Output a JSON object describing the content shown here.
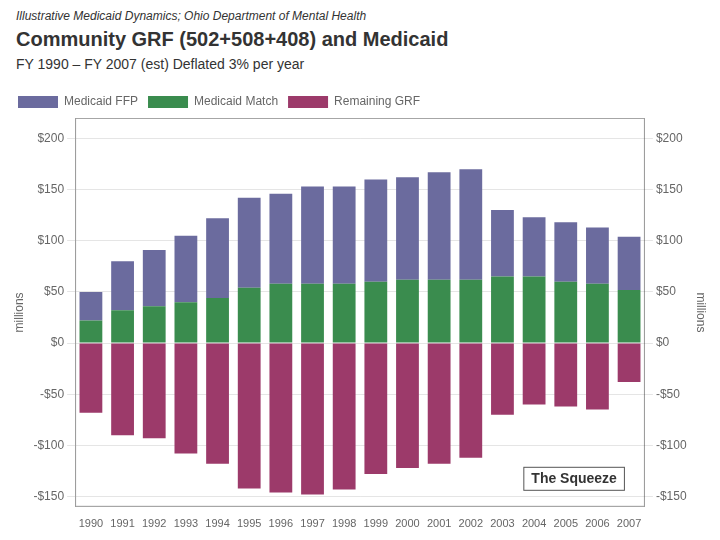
{
  "chart_data": {
    "type": "bar",
    "stacked": true,
    "supertitle": "Illustrative Medicaid Dynamics; Ohio Department of Mental Health",
    "title": "Community GRF (502+508+408) and Medicaid",
    "subtitle": "FY 1990 – FY 2007 (est) Deflated 3% per year",
    "y_label": "millions",
    "y2_label": "millions",
    "annotation": "The Squeeze",
    "categories": [
      1990,
      1991,
      1992,
      1993,
      1994,
      1995,
      1996,
      1997,
      1998,
      1999,
      2000,
      2001,
      2002,
      2003,
      2004,
      2005,
      2006,
      2007
    ],
    "series": [
      {
        "name": "Medicaid FFP",
        "color": "#6b6b9e",
        "values": [
          28,
          48,
          55,
          65,
          78,
          88,
          88,
          95,
          95,
          100,
          100,
          105,
          108,
          65,
          58,
          58,
          55,
          52
        ]
      },
      {
        "name": "Medicaid Match",
        "color": "#3a8c4e",
        "values": [
          22,
          32,
          36,
          40,
          44,
          54,
          58,
          58,
          58,
          60,
          62,
          62,
          62,
          65,
          65,
          60,
          58,
          52
        ]
      },
      {
        "name": "Remaining GRF",
        "color": "#9c3a6a",
        "values": [
          -68,
          -90,
          -93,
          -108,
          -118,
          -142,
          -146,
          -148,
          -143,
          -128,
          -122,
          -118,
          -112,
          -70,
          -60,
          -62,
          -65,
          -38
        ]
      }
    ],
    "ylim": [
      -160,
      220
    ],
    "yticks": [
      {
        "value": -150,
        "label": "-$150"
      },
      {
        "value": -100,
        "label": "-$100"
      },
      {
        "value": -50,
        "label": "-$50"
      },
      {
        "value": 0,
        "label": "$0"
      },
      {
        "value": 50,
        "label": "$50"
      },
      {
        "value": 100,
        "label": "$100"
      },
      {
        "value": 150,
        "label": "$150"
      },
      {
        "value": 200,
        "label": "$200"
      }
    ],
    "y2lim": [
      -160,
      220
    ],
    "y2ticks": [
      {
        "value": -150,
        "label": "-$150"
      },
      {
        "value": -100,
        "label": "-$100"
      },
      {
        "value": -50,
        "label": "-$50"
      },
      {
        "value": 0,
        "label": "$0"
      },
      {
        "value": 50,
        "label": "$50"
      },
      {
        "value": 100,
        "label": "$100"
      },
      {
        "value": 150,
        "label": "$150"
      },
      {
        "value": 200,
        "label": "$200"
      }
    ],
    "grid": true,
    "legend": "upper left"
  }
}
